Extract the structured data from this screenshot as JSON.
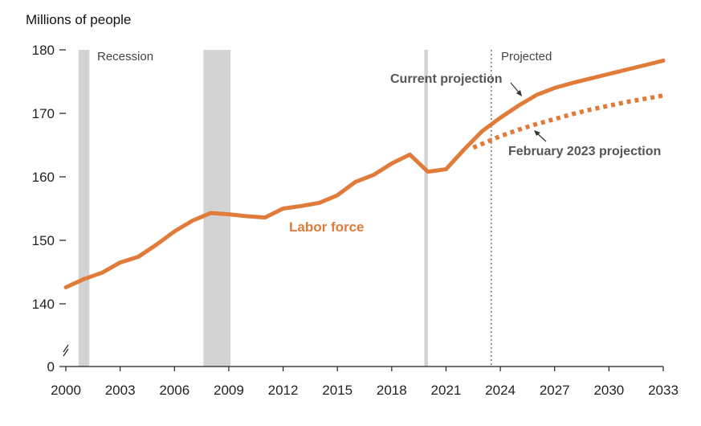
{
  "chart_data": {
    "type": "line",
    "ylabel": "Millions of people",
    "ylim": [
      138,
      180
    ],
    "yticks": [
      140,
      150,
      160,
      170,
      180
    ],
    "y_zero_label": "0",
    "xlim": [
      2000,
      2033
    ],
    "xticks": [
      "2000",
      "2003",
      "2006",
      "2009",
      "2012",
      "2015",
      "2018",
      "2021",
      "2024",
      "2027",
      "2030",
      "2033"
    ],
    "recessions": [
      [
        2000.7,
        2001.3
      ],
      [
        2007.6,
        2009.1
      ],
      [
        2019.8,
        2020.0
      ]
    ],
    "recession_label": "Recession",
    "projected_start": 2023.5,
    "projected_label": "Projected",
    "series": [
      {
        "name": "Labor force",
        "style": "solid",
        "color": "#E07B39",
        "x": [
          2000,
          2001,
          2002,
          2003,
          2004,
          2005,
          2006,
          2007,
          2008,
          2009,
          2010,
          2011,
          2012,
          2013,
          2014,
          2015,
          2016,
          2017,
          2018,
          2019,
          2020,
          2021,
          2022,
          2023,
          2024,
          2025,
          2026,
          2027,
          2028,
          2029,
          2030,
          2031,
          2032,
          2033
        ],
        "values": [
          142.6,
          143.9,
          144.9,
          146.5,
          147.4,
          149.3,
          151.4,
          153.1,
          154.3,
          154.1,
          153.8,
          153.6,
          155.0,
          155.4,
          155.9,
          157.1,
          159.2,
          160.3,
          162.1,
          163.5,
          160.8,
          161.2,
          164.3,
          167.2,
          169.3,
          171.2,
          172.9,
          174.0,
          174.8,
          175.5,
          176.2,
          176.9,
          177.6,
          178.3
        ]
      },
      {
        "name": "February 2023 projection",
        "style": "dotted",
        "color": "#E07B39",
        "x": [
          2022.5,
          2024,
          2025,
          2026,
          2027,
          2028,
          2029,
          2030,
          2031,
          2032,
          2033
        ],
        "values": [
          164.6,
          166.4,
          167.4,
          168.3,
          169.1,
          169.9,
          170.6,
          171.2,
          171.8,
          172.3,
          172.8
        ]
      }
    ],
    "annotations": {
      "labor_force": "Labor force",
      "current_projection": "Current projection",
      "feb_projection": "February 2023 projection"
    }
  }
}
